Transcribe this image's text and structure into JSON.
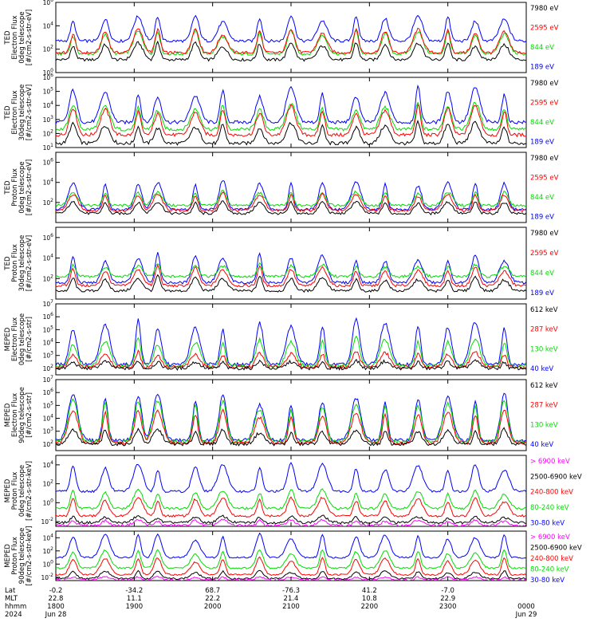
{
  "chart_data": [
    {
      "type": "line",
      "ylabel": [
        "TED",
        "Electron Flux",
        "0deg telescope",
        "[#/cm2-s-str-eV]"
      ],
      "y_log_range": [
        0,
        6
      ],
      "y_ticks": [
        {
          "exp": "0",
          "v": 0
        },
        {
          "exp": "2",
          "v": 2
        },
        {
          "exp": "4",
          "v": 4
        },
        {
          "exp": "6",
          "v": 6
        }
      ],
      "series": [
        {
          "name": "7980 eV",
          "color": "#000000",
          "base": 1.1,
          "peak": 2.6
        },
        {
          "name": "2595 eV",
          "color": "#ff0000",
          "base": 1.7,
          "peak": 3.8
        },
        {
          "name": "844 eV",
          "color": "#00dd00",
          "base": 1.6,
          "peak": 3.6
        },
        {
          "name": "189 eV",
          "color": "#0000ff",
          "base": 2.7,
          "peak": 4.9
        }
      ]
    },
    {
      "type": "line",
      "ylabel": [
        "TED",
        "Electron Flux",
        "30deg telescope",
        "[#/cm2-s-str-eV]"
      ],
      "y_log_range": [
        1,
        6
      ],
      "y_ticks": [
        {
          "exp": "1",
          "v": 1
        },
        {
          "exp": "2",
          "v": 2
        },
        {
          "exp": "3",
          "v": 3
        },
        {
          "exp": "4",
          "v": 4
        },
        {
          "exp": "5",
          "v": 5
        },
        {
          "exp": "6",
          "v": 6
        }
      ],
      "series": [
        {
          "name": "7980 eV",
          "color": "#000000",
          "base": 1.3,
          "peak": 2.8
        },
        {
          "name": "2595 eV",
          "color": "#ff0000",
          "base": 1.9,
          "peak": 4.0
        },
        {
          "name": "844 eV",
          "color": "#00dd00",
          "base": 2.3,
          "peak": 4.2
        },
        {
          "name": "189 eV",
          "color": "#0000ff",
          "base": 2.8,
          "peak": 5.3
        }
      ]
    },
    {
      "type": "line",
      "ylabel": [
        "TED",
        "Proton Flux",
        "0deg telescope",
        "[#/cm2-s-str-eV]"
      ],
      "y_log_range": [
        0,
        7
      ],
      "y_ticks": [
        {
          "exp": "2",
          "v": 2
        },
        {
          "exp": "4",
          "v": 4
        },
        {
          "exp": "6",
          "v": 6
        }
      ],
      "series": [
        {
          "name": "7980 eV",
          "color": "#000000",
          "base": 0.9,
          "peak": 2.2
        },
        {
          "name": "2595 eV",
          "color": "#ff0000",
          "base": 1.2,
          "peak": 3.0
        },
        {
          "name": "844 eV",
          "color": "#00dd00",
          "base": 1.7,
          "peak": 3.2
        },
        {
          "name": "189 eV",
          "color": "#0000ff",
          "base": 1.3,
          "peak": 4.3
        }
      ]
    },
    {
      "type": "line",
      "ylabel": [
        "TED",
        "Proton Flux",
        "30deg telescope",
        "[#/cm2-s-str-eV]"
      ],
      "y_log_range": [
        0,
        7
      ],
      "y_ticks": [
        {
          "exp": "2",
          "v": 2
        },
        {
          "exp": "4",
          "v": 4
        },
        {
          "exp": "6",
          "v": 6
        }
      ],
      "series": [
        {
          "name": "7980 eV",
          "color": "#000000",
          "base": 0.8,
          "peak": 2.3
        },
        {
          "name": "2595 eV",
          "color": "#ff0000",
          "base": 1.3,
          "peak": 3.3
        },
        {
          "name": "844 eV",
          "color": "#00dd00",
          "base": 2.2,
          "peak": 3.5
        },
        {
          "name": "189 eV",
          "color": "#0000ff",
          "base": 1.6,
          "peak": 4.6
        }
      ]
    },
    {
      "type": "line",
      "ylabel": [
        "MEPED",
        "Electron Flux",
        "0deg telescope",
        "[#/cm2-s-str]"
      ],
      "y_log_range": [
        1.5,
        7
      ],
      "y_ticks": [
        {
          "exp": "2",
          "v": 2
        },
        {
          "exp": "3",
          "v": 3
        },
        {
          "exp": "4",
          "v": 4
        },
        {
          "exp": "5",
          "v": 5
        },
        {
          "exp": "6",
          "v": 6
        },
        {
          "exp": "7",
          "v": 7
        }
      ],
      "series": [
        {
          "name": "612 keV",
          "color": "#000000",
          "base": 2.0,
          "peak": 2.6
        },
        {
          "name": "287 keV",
          "color": "#ff0000",
          "base": 2.1,
          "peak": 3.3
        },
        {
          "name": "130 keV",
          "color": "#00dd00",
          "base": 2.2,
          "peak": 4.4
        },
        {
          "name": "40 keV",
          "color": "#0000ff",
          "base": 2.3,
          "peak": 5.8
        }
      ]
    },
    {
      "type": "line",
      "ylabel": [
        "MEPED",
        "Electron Flux",
        "90deg telescope",
        "[#/cm2-s-str]"
      ],
      "y_log_range": [
        1.5,
        7
      ],
      "y_ticks": [
        {
          "exp": "2",
          "v": 2
        },
        {
          "exp": "3",
          "v": 3
        },
        {
          "exp": "4",
          "v": 4
        },
        {
          "exp": "5",
          "v": 5
        },
        {
          "exp": "6",
          "v": 6
        },
        {
          "exp": "7",
          "v": 7
        }
      ],
      "series": [
        {
          "name": "612 keV",
          "color": "#000000",
          "base": 2.0,
          "peak": 3.2
        },
        {
          "name": "287 keV",
          "color": "#ff0000",
          "base": 2.1,
          "peak": 4.8
        },
        {
          "name": "130 keV",
          "color": "#00dd00",
          "base": 2.2,
          "peak": 5.6
        },
        {
          "name": "40 keV",
          "color": "#0000ff",
          "base": 2.3,
          "peak": 6.1
        }
      ]
    },
    {
      "type": "line",
      "ylabel": [
        "MEPED",
        "Proton Flux",
        "0deg telescope",
        "[#/cm2-s-str-keV]"
      ],
      "y_log_range": [
        -2.5,
        5
      ],
      "y_ticks": [
        {
          "exp": "-2",
          "v": -2
        },
        {
          "exp": "0",
          "v": 0
        },
        {
          "exp": "2",
          "v": 2
        },
        {
          "exp": "4",
          "v": 4
        }
      ],
      "series": [
        {
          "name": "> 6900 keV",
          "color": "#ff00ff",
          "base": -2.4,
          "peak": -1.8
        },
        {
          "name": "2500-6900 keV",
          "color": "#000000",
          "base": -2.1,
          "peak": -1.4
        },
        {
          "name": "240-800 keV",
          "color": "#ff0000",
          "base": -1.4,
          "peak": 0.6
        },
        {
          "name": "80-240 keV",
          "color": "#00dd00",
          "base": -0.6,
          "peak": 1.4
        },
        {
          "name": "30-80 keV",
          "color": "#0000ff",
          "base": 1.2,
          "peak": 4.2
        }
      ]
    },
    {
      "type": "line",
      "ylabel": [
        "MEPED",
        "Proton Flux",
        "90deg telescope",
        "[#/cm2-s-str-keV]"
      ],
      "y_log_range": [
        -2.5,
        5
      ],
      "y_ticks": [
        {
          "exp": "-2",
          "v": -2
        },
        {
          "exp": "0",
          "v": 0
        },
        {
          "exp": "2",
          "v": 2
        },
        {
          "exp": "4",
          "v": 4
        }
      ],
      "series": [
        {
          "name": "> 6900 keV",
          "color": "#ff00ff",
          "base": -2.4,
          "peak": -1.9
        },
        {
          "name": "2500-6900 keV",
          "color": "#000000",
          "base": -2.2,
          "peak": -1.0
        },
        {
          "name": "240-800 keV",
          "color": "#ff0000",
          "base": -1.6,
          "peak": 1.0
        },
        {
          "name": "80-240 keV",
          "color": "#00dd00",
          "base": -0.6,
          "peak": 2.2
        },
        {
          "name": "30-80 keV",
          "color": "#0000ff",
          "base": 1.0,
          "peak": 4.6
        }
      ]
    }
  ],
  "x_axis": {
    "row_labels": [
      "Lat",
      "MLT",
      "hhmm",
      "2024"
    ],
    "range_hours": [
      18,
      24
    ],
    "ticks": [
      {
        "t": 18,
        "lat": "-0.2",
        "mlt": "22.8",
        "hhmm": "1800",
        "date": "Jun 28"
      },
      {
        "t": 19,
        "lat": "-34.2",
        "mlt": "11.1",
        "hhmm": "1900",
        "date": ""
      },
      {
        "t": 20,
        "lat": "68.7",
        "mlt": "22.2",
        "hhmm": "2000",
        "date": ""
      },
      {
        "t": 21,
        "lat": "-76.3",
        "mlt": "21.4",
        "hhmm": "2100",
        "date": ""
      },
      {
        "t": 22,
        "lat": "41.2",
        "mlt": "10.8",
        "hhmm": "2200",
        "date": ""
      },
      {
        "t": 23,
        "lat": "-7.0",
        "mlt": "22.9",
        "hhmm": "2300",
        "date": ""
      },
      {
        "t": 24,
        "lat": "",
        "mlt": "",
        "hhmm": "0000",
        "date": "Jun 29"
      }
    ]
  }
}
